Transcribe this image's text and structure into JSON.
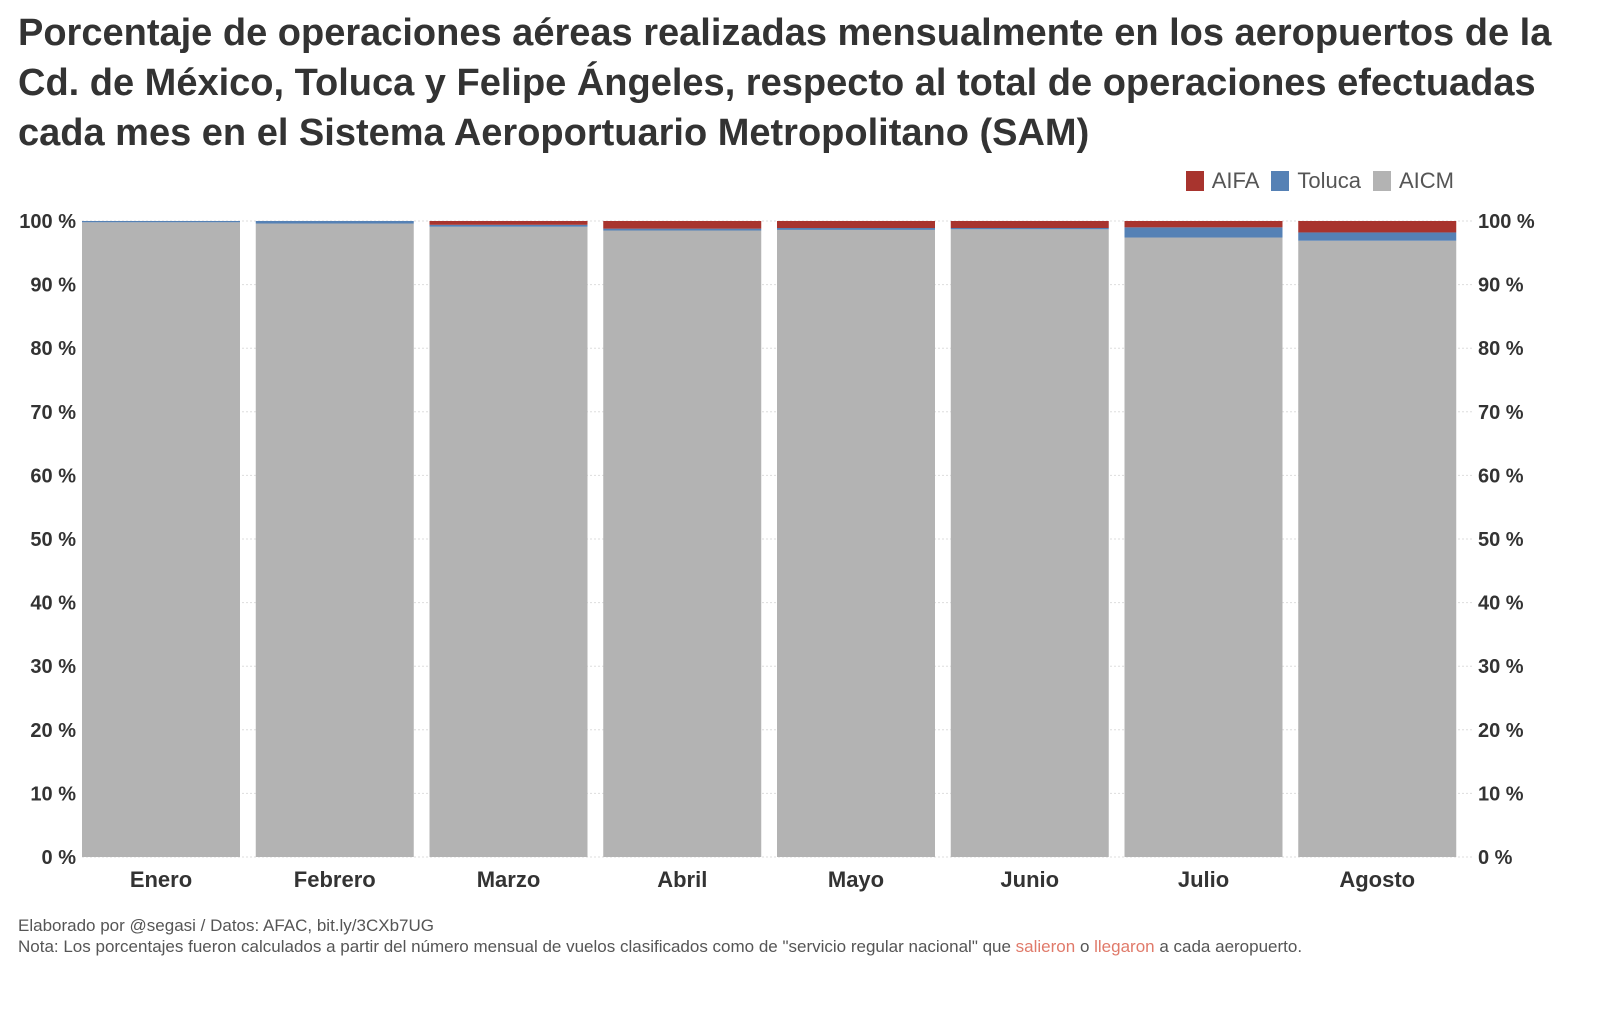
{
  "title": "Porcentaje de operaciones aéreas realizadas mensualmente en los aeropuertos de la Cd. de México, Toluca y Felipe Ángeles, respecto al total de operaciones efectuadas cada mes en el Sistema Aeroportuario Metropolitano (SAM)",
  "legend": [
    {
      "label": "AIFA",
      "color": "#a8342e"
    },
    {
      "label": "Toluca",
      "color": "#5581b5"
    },
    {
      "label": "AICM",
      "color": "#b3b3b3"
    }
  ],
  "chart_data": {
    "type": "bar",
    "stacked": true,
    "categories": [
      "Enero",
      "Febrero",
      "Marzo",
      "Abril",
      "Mayo",
      "Junio",
      "Julio",
      "Agosto"
    ],
    "series": [
      {
        "name": "AICM",
        "color": "#b3b3b3",
        "values": [
          99.8,
          99.6,
          99.1,
          98.5,
          98.6,
          98.7,
          97.4,
          96.9
        ]
      },
      {
        "name": "Toluca",
        "color": "#5581b5",
        "values": [
          0.2,
          0.4,
          0.3,
          0.3,
          0.3,
          0.2,
          1.6,
          1.3
        ]
      },
      {
        "name": "AIFA",
        "color": "#a8342e",
        "values": [
          0.0,
          0.0,
          0.6,
          1.2,
          1.1,
          1.1,
          1.0,
          1.8
        ]
      }
    ],
    "ylim": [
      0,
      100
    ],
    "yticks": [
      "0 %",
      "10 %",
      "20 %",
      "30 %",
      "40 %",
      "50 %",
      "60 %",
      "70 %",
      "80 %",
      "90 %",
      "100 %"
    ],
    "grid": true,
    "legend_position": "top-right"
  },
  "footer": {
    "credit": "Elaborado por @segasi / Datos: AFAC, bit.ly/3CXb7UG",
    "note_pre": "Nota: Los porcentajes fueron calculados a partir del número mensual de vuelos clasificados como de \"servicio regular nacional\" que ",
    "link1": "salieron",
    "mid": " o ",
    "link2": "llegaron",
    "note_post": " a cada aeropuerto."
  }
}
